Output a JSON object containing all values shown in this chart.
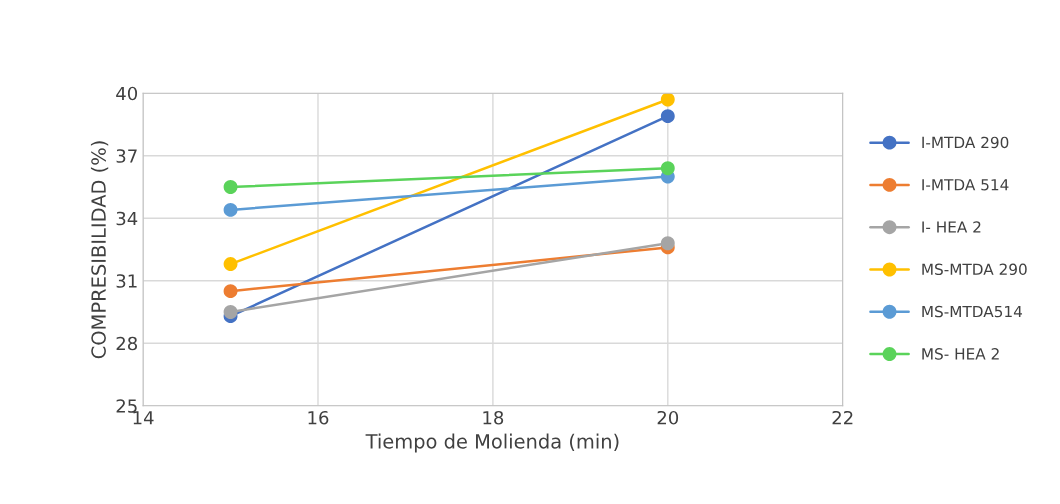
{
  "chart_data": {
    "type": "line",
    "xlabel": "Tiempo de Molienda (min)",
    "ylabel": "COMPRESIBILIDAD (%)",
    "x": [
      15,
      20
    ],
    "series": [
      {
        "name": "I-MTDA 290",
        "color": "#4472c4",
        "values": [
          29.3,
          38.9
        ]
      },
      {
        "name": "I-MTDA 514",
        "color": "#ed7d31",
        "values": [
          30.5,
          32.6
        ]
      },
      {
        "name": "I- HEA 2",
        "color": "#a5a5a5",
        "values": [
          29.5,
          32.8
        ]
      },
      {
        "name": "MS-MTDA 290",
        "color": "#ffc000",
        "values": [
          31.8,
          39.7
        ]
      },
      {
        "name": "MS-MTDA514",
        "color": "#5b9bd5",
        "values": [
          34.4,
          36.0
        ]
      },
      {
        "name": "MS- HEA 2",
        "color": "#5ad35a",
        "values": [
          35.5,
          36.4
        ]
      }
    ],
    "xlim": [
      14,
      22
    ],
    "xticks": [
      14,
      16,
      18,
      20,
      22
    ],
    "ylim": [
      25,
      40
    ],
    "yticks": [
      25,
      28,
      31,
      34,
      37,
      40
    ],
    "grid": true,
    "legend": "right",
    "marker": "circle",
    "line_style": "solid"
  }
}
